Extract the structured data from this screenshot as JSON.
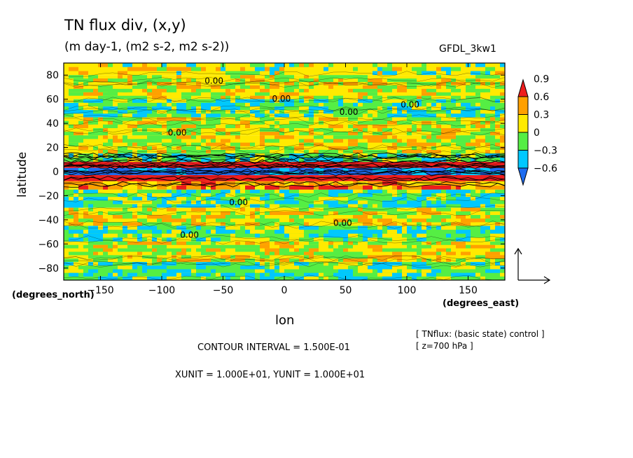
{
  "chart_data": {
    "type": "heatmap",
    "title": "TN flux div, (x,y)",
    "subtitle": "(m day-1, (m2 s-2, m2 s-2))",
    "model_label": "GFDL_3kw1",
    "xlabel": "lon",
    "ylabel": "latitude",
    "x_units_label": "(degrees_east)",
    "y_units_label": "(degrees_north)",
    "xlim": [
      -180,
      180
    ],
    "ylim": [
      -90,
      90
    ],
    "x_ticks": [
      -150,
      -100,
      -50,
      0,
      50,
      100,
      150
    ],
    "x_tick_labels": [
      "−150",
      "−100",
      "−50",
      "0",
      "50",
      "100",
      "150"
    ],
    "y_ticks": [
      80,
      60,
      40,
      20,
      0,
      -20,
      -40,
      -60,
      -80
    ],
    "y_tick_labels": [
      "80",
      "60",
      "40",
      "20",
      "0",
      "−20",
      "−40",
      "−60",
      "−80"
    ],
    "colorbar": {
      "levels": [
        -0.6,
        -0.3,
        0,
        0.3,
        0.6,
        0.9
      ],
      "level_labels": [
        "−0.6",
        "−0.3",
        "0",
        "0.3",
        "0.6",
        "0.9"
      ],
      "colors": [
        "#1e6cf0",
        "#00c8ff",
        "#55ee44",
        "#ffea00",
        "#ffa000",
        "#ee1c1c"
      ]
    },
    "contour_label": "0.00",
    "latitude_bands": [
      {
        "lat_range": [
          80,
          90
        ],
        "dominant": 0.0
      },
      {
        "lat_range": [
          60,
          80
        ],
        "dominant": 0.15
      },
      {
        "lat_range": [
          45,
          60
        ],
        "dominant": -0.15
      },
      {
        "lat_range": [
          30,
          45
        ],
        "dominant": 0.15
      },
      {
        "lat_range": [
          15,
          30
        ],
        "dominant": 0.15
      },
      {
        "lat_range": [
          8,
          15
        ],
        "dominant": -0.15
      },
      {
        "lat_range": [
          3,
          8
        ],
        "dominant": 0.95
      },
      {
        "lat_range": [
          -3,
          3
        ],
        "dominant": -0.7
      },
      {
        "lat_range": [
          -8,
          -3
        ],
        "dominant": 0.95
      },
      {
        "lat_range": [
          -15,
          -8
        ],
        "dominant": 0.45
      },
      {
        "lat_range": [
          -30,
          -15
        ],
        "dominant": -0.15
      },
      {
        "lat_range": [
          -45,
          -30
        ],
        "dominant": 0.15
      },
      {
        "lat_range": [
          -58,
          -45
        ],
        "dominant": -0.15
      },
      {
        "lat_range": [
          -75,
          -58
        ],
        "dominant": 0.15
      },
      {
        "lat_range": [
          -90,
          -75
        ],
        "dominant": -0.15
      }
    ],
    "vector_legend": "reference arrow"
  },
  "footer": {
    "contour_interval": "CONTOUR INTERVAL = 1.500E-01",
    "units": "XUNIT = 1.000E+01, YUNIT = 1.000E+01",
    "note_line1": "[ TNflux: (basic state) control ]",
    "note_line2": "[ z=700 hPa ]"
  }
}
